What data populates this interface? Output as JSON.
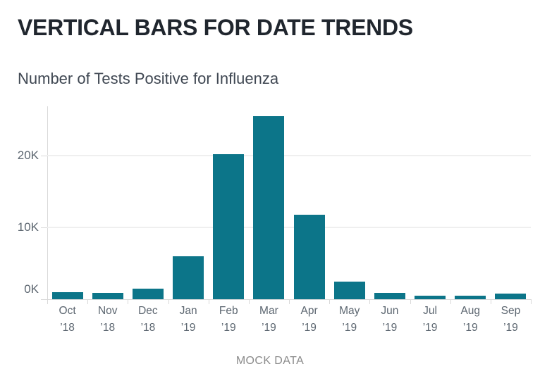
{
  "page": {
    "title": "VERTICAL BARS FOR DATE TRENDS"
  },
  "chart_data": {
    "type": "bar",
    "title": "Number of Tests Positive for Influenza",
    "caption": "MOCK DATA",
    "categories": [
      {
        "month": "Oct",
        "year": "’18"
      },
      {
        "month": "Nov",
        "year": "’18"
      },
      {
        "month": "Dec",
        "year": "’18"
      },
      {
        "month": "Jan",
        "year": "’19"
      },
      {
        "month": "Feb",
        "year": "’19"
      },
      {
        "month": "Mar",
        "year": "’19"
      },
      {
        "month": "Apr",
        "year": "’19"
      },
      {
        "month": "May",
        "year": "’19"
      },
      {
        "month": "Jun",
        "year": "’19"
      },
      {
        "month": "Jul",
        "year": "’19"
      },
      {
        "month": "Aug",
        "year": "’19"
      },
      {
        "month": "Sep",
        "year": "’19"
      }
    ],
    "values": [
      1000,
      900,
      1500,
      6000,
      20200,
      25500,
      11800,
      2500,
      900,
      500,
      500,
      800
    ],
    "yticks": [
      {
        "value": 0,
        "label": "0K"
      },
      {
        "value": 10000,
        "label": "10K"
      },
      {
        "value": 20000,
        "label": "20K"
      }
    ],
    "ylim": [
      0,
      26900
    ],
    "grid": "horizontal",
    "legend": "none",
    "colors": {
      "bar": "#0c7589",
      "title": "#20262e",
      "subtitle": "#3f4752",
      "axis_label": "#5c6670",
      "gridline": "#efefef",
      "axis_line": "#d9d9d9",
      "caption": "#8b8b8b",
      "background": "#ffffff"
    }
  }
}
